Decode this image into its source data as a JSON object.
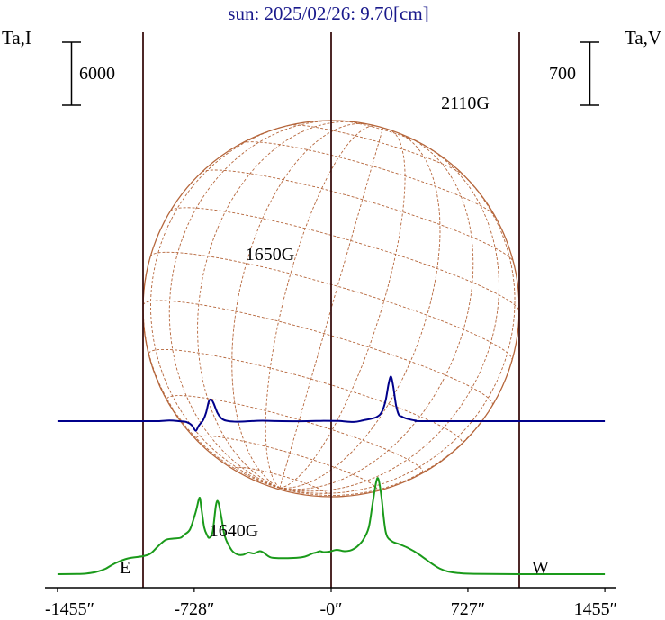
{
  "title": "sun: 2025/02/26: 9.70[cm]",
  "left_axis_label": "Ta,I",
  "right_axis_label": "Ta,V",
  "left_scale_label": "6000",
  "right_scale_label": "700",
  "limb_labels": {
    "east": "E",
    "west": "W"
  },
  "annotations": [
    "1650G",
    "1640G",
    "2110G"
  ],
  "colors": {
    "title": "#1a1a8c",
    "intensity": "#00008b",
    "polarization": "#1a9a1a",
    "grid": "#b5653a",
    "limb_lines": "#3a1010",
    "axis": "#000000"
  },
  "chart_data": {
    "type": "line",
    "title": "sun: 2025/02/26: 9.70[cm]",
    "xlabel": "",
    "ylabel": "Ta,I",
    "y2label": "Ta,V",
    "xlim": [
      -1455,
      1455
    ],
    "x_ticks": [
      {
        "value": -1455,
        "label": "-1455″"
      },
      {
        "value": -728,
        "label": "-728″"
      },
      {
        "value": 0,
        "label": "-0″"
      },
      {
        "value": 727,
        "label": "727″"
      },
      {
        "value": 1455,
        "label": "1455″"
      }
    ],
    "vertical_lines": [
      -1000,
      0,
      1000
    ],
    "solar_disk": {
      "x_center": 0,
      "radius_arcsec": 1000
    },
    "series": [
      {
        "axis": "left",
        "color": "#00008b",
        "points": [
          [
            -1455,
            0
          ],
          [
            -1000,
            0
          ],
          [
            -920,
            0
          ],
          [
            -860,
            60
          ],
          [
            -810,
            0
          ],
          [
            -770,
            -80
          ],
          [
            -740,
            -400
          ],
          [
            -720,
            -920
          ],
          [
            -705,
            -450
          ],
          [
            -690,
            -120
          ],
          [
            -680,
            120
          ],
          [
            -665,
            800
          ],
          [
            -650,
            1900
          ],
          [
            -637,
            2050
          ],
          [
            -625,
            1700
          ],
          [
            -605,
            800
          ],
          [
            -585,
            300
          ],
          [
            -560,
            50
          ],
          [
            -500,
            -50
          ],
          [
            -420,
            10
          ],
          [
            -365,
            45
          ],
          [
            -300,
            10
          ],
          [
            -160,
            -10
          ],
          [
            -40,
            30
          ],
          [
            40,
            20
          ],
          [
            120,
            -80
          ],
          [
            170,
            80
          ],
          [
            240,
            380
          ],
          [
            270,
            900
          ],
          [
            290,
            2000
          ],
          [
            305,
            3500
          ],
          [
            318,
            4250
          ],
          [
            330,
            3300
          ],
          [
            345,
            1500
          ],
          [
            360,
            600
          ],
          [
            375,
            450
          ],
          [
            385,
            350
          ],
          [
            410,
            200
          ],
          [
            450,
            50
          ],
          [
            500,
            0
          ],
          [
            1000,
            0
          ],
          [
            1455,
            0
          ]
        ]
      },
      {
        "axis": "right",
        "color": "#1a9a1a",
        "points": [
          [
            -1455,
            0
          ],
          [
            -1350,
            2
          ],
          [
            -1300,
            8
          ],
          [
            -1250,
            25
          ],
          [
            -1200,
            60
          ],
          [
            -1150,
            120
          ],
          [
            -1080,
            175
          ],
          [
            -1000,
            200
          ],
          [
            -960,
            230
          ],
          [
            -920,
            310
          ],
          [
            -880,
            380
          ],
          [
            -840,
            395
          ],
          [
            -800,
            405
          ],
          [
            -780,
            440
          ],
          [
            -750,
            500
          ],
          [
            -720,
            690
          ],
          [
            -700,
            850
          ],
          [
            -690,
            730
          ],
          [
            -675,
            520
          ],
          [
            -660,
            435
          ],
          [
            -648,
            405
          ],
          [
            -630,
            470
          ],
          [
            -612,
            770
          ],
          [
            -600,
            800
          ],
          [
            -585,
            650
          ],
          [
            -565,
            420
          ],
          [
            -530,
            270
          ],
          [
            -500,
            220
          ],
          [
            -470,
            215
          ],
          [
            -440,
            240
          ],
          [
            -410,
            230
          ],
          [
            -380,
            255
          ],
          [
            -360,
            240
          ],
          [
            -330,
            195
          ],
          [
            -300,
            180
          ],
          [
            -200,
            180
          ],
          [
            -150,
            190
          ],
          [
            -120,
            210
          ],
          [
            -100,
            230
          ],
          [
            -80,
            240
          ],
          [
            -60,
            255
          ],
          [
            -40,
            245
          ],
          [
            -10,
            250
          ],
          [
            30,
            270
          ],
          [
            70,
            255
          ],
          [
            100,
            262
          ],
          [
            120,
            280
          ],
          [
            140,
            310
          ],
          [
            170,
            380
          ],
          [
            200,
            520
          ],
          [
            220,
            780
          ],
          [
            240,
            1030
          ],
          [
            252,
            1050
          ],
          [
            268,
            850
          ],
          [
            290,
            470
          ],
          [
            320,
            370
          ],
          [
            360,
            335
          ],
          [
            400,
            300
          ],
          [
            440,
            255
          ],
          [
            470,
            215
          ],
          [
            500,
            170
          ],
          [
            540,
            110
          ],
          [
            580,
            60
          ],
          [
            620,
            30
          ],
          [
            680,
            12
          ],
          [
            760,
            4
          ],
          [
            1000,
            0
          ],
          [
            1455,
            0
          ]
        ]
      }
    ]
  }
}
